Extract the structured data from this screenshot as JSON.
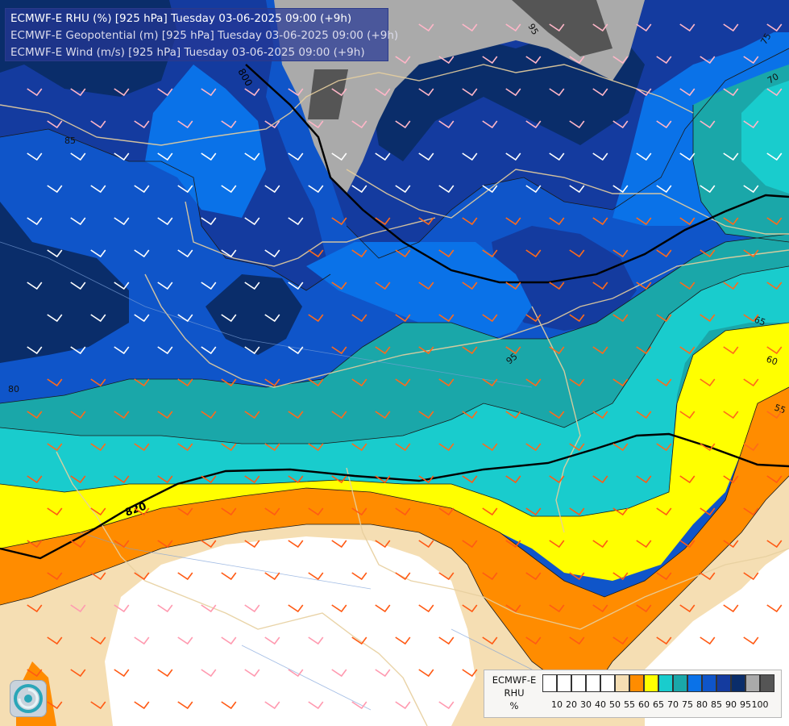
{
  "header": {
    "line1": "ECMWF-E RHU (%) [925 hPa] Tuesday 03-06-2025 09:00 (+9h)",
    "line2": "ECMWF-E Geopotential (m) [925 hPa] Tuesday 03-06-2025 09:00 (+9h)",
    "line3": "ECMWF-E Wind (m/s) [925 hPa] Tuesday 03-06-2025 09:00 (+9h)"
  },
  "legend": {
    "title1": "ECMWF-E",
    "title2": "RHU",
    "title3": "%",
    "colors": [
      "#ffffff",
      "#ffffff",
      "#ffffff",
      "#ffffff",
      "#ffffff",
      "#f5deb3",
      "#ff8c00",
      "#ffff00",
      "#19cccd",
      "#1aa7a9",
      "#0a72e8",
      "#0f55c9",
      "#143b9f",
      "#0a2d6a",
      "#aaaaaa",
      "#555555"
    ],
    "ticks": [
      "10",
      "20",
      "30",
      "40",
      "50",
      "55",
      "60",
      "65",
      "70",
      "75",
      "80",
      "85",
      "90",
      "95",
      "100"
    ]
  },
  "contour_labels": {
    "geo_820": "820",
    "geo_800": "800",
    "rh_95": "95",
    "rh_85": "85",
    "rh_80": "80",
    "rh_75": "75",
    "rh_70": "70",
    "rh_65": "65",
    "rh_60": "60",
    "rh_55": "55",
    "rh_95b": "95"
  },
  "icons": {
    "logo": "ecmwf-swirl-logo",
    "wind": "wind-barb-icon"
  }
}
